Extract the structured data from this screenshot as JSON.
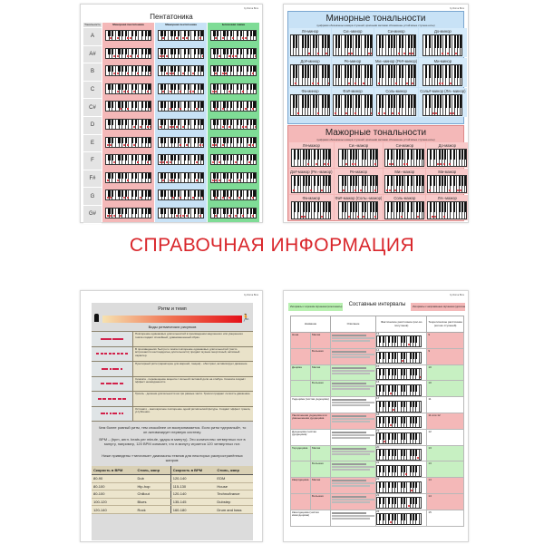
{
  "heading": "СПРАВОЧНАЯ ИНФОРМАЦИЯ",
  "brand": "by Roma Bros",
  "colors": {
    "heading": "#d9262b",
    "pink": "#f4b8b8",
    "blue": "#c8e2f6",
    "green": "#6fd88a",
    "dot": "#e0202a"
  },
  "pentatonic": {
    "title": "Пентатоника",
    "note_header": "Тональность",
    "columns": [
      "Минорная пентатоника",
      "Мажорная пентатоника",
      "Блюзовая гамма"
    ],
    "notes": [
      "A",
      "A#",
      "B",
      "C",
      "C#",
      "D",
      "E",
      "F",
      "F#",
      "G",
      "G#"
    ]
  },
  "minor": {
    "title": "Минорные тональности",
    "subtitle": "(цифрами обозначены номера ступеней, красными метками обозначены устойчивые ступени-ноты)",
    "keys": [
      "Ля-минор",
      "Си♭-минор",
      "Си-минор",
      "До-минор",
      "До#-минор",
      "Ре-минор",
      "Ми♭-минор (Ре#-минор)",
      "Ми-минор",
      "Фа-минор",
      "Фа#-минор",
      "Соль-минор",
      "Соль#-минор (Ля♭-минор)"
    ]
  },
  "major": {
    "title": "Мажорные тональности",
    "subtitle": "(цифрами обозначены номера ступеней, красными метками обозначены устойчивые ступени-ноты)",
    "keys": [
      "Ля-мажор",
      "Си♭-мажор",
      "Си-мажор",
      "До-мажор",
      "До#-мажор (Ре♭-мажор)",
      "Ре-мажор",
      "Ми♭-мажор",
      "Ми-мажор",
      "Фа-мажор",
      "Фа#-мажор (Соль♭-мажор)",
      "Соль-мажор",
      "Ля♭-мажор"
    ]
  },
  "rhythm": {
    "title": "Ритм и темп",
    "subtitle": "Виды ритмических рисунков",
    "rows": [
      "Повторение одинаковых длительностей в произведении медленного или умеренного темпа создаёт спокойный, уравновешенный образ.",
      "В произведениях быстрого темпа повторение одинаковых длительностей (часто встречаются шестнадцатые длительности) придаёт музыке энергичный, активный характер.",
      "Пунктирный ритм (характерен для маршей, танцев) - обостряет, активизирует движение.",
      "Синкопа - перемещение акцента с сильной тактовой доли на слабую. Синкопа создаёт эффект неожиданности.",
      "Триоль - деление длительности на три равные части. Триоли придают легкость движению.",
      "Остинато - многократное повторение одной ритмической фигуры. Создаёт эффект транса, углубления."
    ],
    "para1": "Чем более ровный ритм, тем спокойнее он воспринимается. Если ритм «дерганый», то он активизирует нервную систему.",
    "para2": "BPM – (bpm, англ. beats per minute, удары в минуту). Это количество четвертных нот в минуту, например, 120 BPM означает, что в минуту играется 120 четвертных нот.",
    "para3": "Ниже приведены «типичные» диапазоны темпов для некоторых распространённых жанров:",
    "table_headers": [
      "Скорость в BPM",
      "Стиль, жанр",
      "Скорость в BPM",
      "Стиль, жанр"
    ],
    "table_rows": [
      [
        "80-90",
        "Dub",
        "120-140",
        "EDM"
      ],
      [
        "80-100",
        "Hip-hop",
        "115-130",
        "House"
      ],
      [
        "80-100",
        "Chillout",
        "120-140",
        "Techno/trance"
      ],
      [
        "100-120",
        "Blues",
        "135-145",
        "Dubstep"
      ],
      [
        "120-140",
        "Rock",
        "160-180",
        "Drum and bass"
      ]
    ]
  },
  "intervals": {
    "title": "Составные интервалы",
    "tag_good": "Интервалы с хорошим звучанием (консонансы)",
    "tag_bad": "Интервалы с напряжённым звучанием (диссонансы)",
    "headers": [
      "Название",
      "Описание",
      "Фактическое расстояние (кол-во полутонов)",
      "Теоретическое расстояние (кол-во ступеней)"
    ],
    "rows": [
      {
        "name": "Нона",
        "sub": "Малая",
        "tone": "pink",
        "semi": "13",
        "steps": "9"
      },
      {
        "name": "",
        "sub": "Большая",
        "tone": "pink",
        "semi": "14",
        "steps": "9"
      },
      {
        "name": "Децима",
        "sub": "Малая",
        "tone": "green",
        "semi": "15",
        "steps": "10"
      },
      {
        "name": "",
        "sub": "Большая",
        "tone": "green",
        "semi": "16",
        "steps": "10"
      },
      {
        "name": "Ундецима (чистая ундецима)",
        "sub": "",
        "tone": "white",
        "semi": "17",
        "steps": "11"
      },
      {
        "name": "Увеличенная ундецима или уменьшенная дуодецима",
        "sub": "",
        "tone": "pink",
        "semi": "18",
        "steps": "11 или 12"
      },
      {
        "name": "Дуодецима (чистая дуодецима)",
        "sub": "",
        "tone": "white",
        "semi": "19",
        "steps": "12"
      },
      {
        "name": "Терцдецима",
        "sub": "Малая",
        "tone": "green",
        "semi": "20",
        "steps": "13"
      },
      {
        "name": "",
        "sub": "Большая",
        "tone": "green",
        "semi": "21",
        "steps": "13"
      },
      {
        "name": "Квартдецима",
        "sub": "Малая",
        "tone": "pink",
        "semi": "22",
        "steps": "14"
      },
      {
        "name": "",
        "sub": "Большая",
        "tone": "pink",
        "semi": "23",
        "steps": "14"
      },
      {
        "name": "Квинтдецима (чистая квинтдецима)",
        "sub": "",
        "tone": "white",
        "semi": "24",
        "steps": "15"
      }
    ]
  }
}
